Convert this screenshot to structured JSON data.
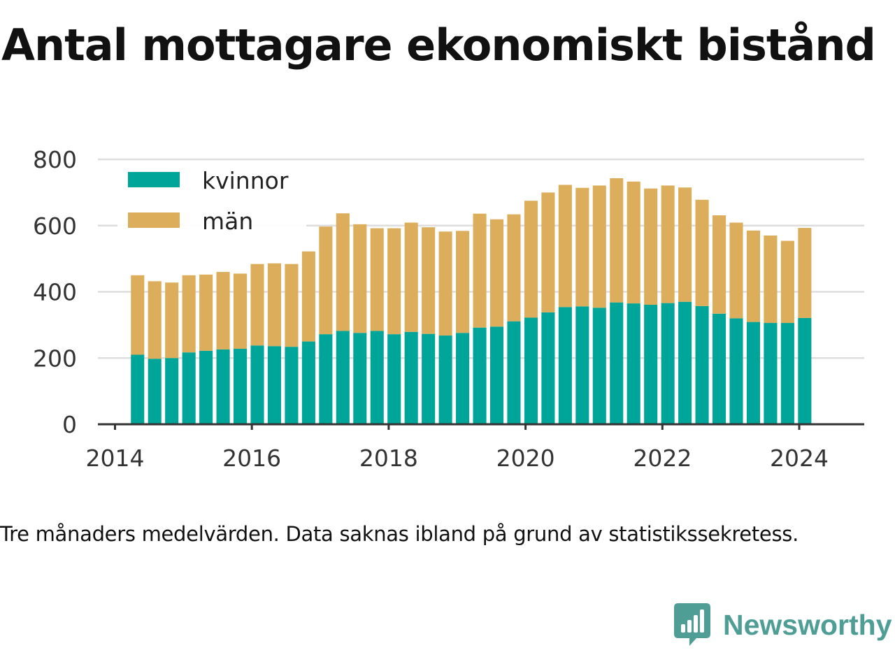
{
  "title": "Antal mottagare ekonomiskt bistånd",
  "note": "Tre månaders medelvärden. Data saknas ibland på grund av statistikssekretess.",
  "brand": {
    "name": "Newsworthy",
    "icon": "newsworthy-logo-icon",
    "color": "#4f9e95"
  },
  "chart_data": {
    "type": "bar",
    "stacked": true,
    "grid": true,
    "legend_position": "top-left",
    "xlabel": "",
    "ylabel": "",
    "ylim": [
      0,
      800
    ],
    "yticks": [
      0,
      200,
      400,
      600,
      800
    ],
    "xlim": [
      2013.75,
      2024.95
    ],
    "xticks": [
      2014,
      2016,
      2018,
      2020,
      2022,
      2024
    ],
    "x": [
      2014.33,
      2014.58,
      2014.83,
      2015.08,
      2015.33,
      2015.58,
      2015.83,
      2016.08,
      2016.33,
      2016.58,
      2016.83,
      2017.08,
      2017.33,
      2017.58,
      2017.83,
      2018.08,
      2018.33,
      2018.58,
      2018.83,
      2019.08,
      2019.33,
      2019.58,
      2019.83,
      2020.08,
      2020.33,
      2020.58,
      2020.83,
      2021.08,
      2021.33,
      2021.58,
      2021.83,
      2022.08,
      2022.33,
      2022.58,
      2022.83,
      2023.08,
      2023.33,
      2023.58,
      2023.83,
      2024.08
    ],
    "series": [
      {
        "name": "kvinnor",
        "color": "#00a59a",
        "values": [
          210,
          198,
          200,
          217,
          222,
          226,
          228,
          238,
          236,
          234,
          250,
          272,
          282,
          276,
          282,
          272,
          279,
          273,
          268,
          276,
          292,
          295,
          311,
          322,
          338,
          354,
          356,
          352,
          368,
          365,
          361,
          366,
          370,
          357,
          334,
          320,
          309,
          306,
          306,
          321
        ]
      },
      {
        "name": "män",
        "color": "#dcae5b",
        "values": [
          240,
          234,
          228,
          233,
          230,
          234,
          227,
          246,
          250,
          250,
          272,
          325,
          355,
          328,
          310,
          320,
          330,
          322,
          314,
          308,
          344,
          324,
          323,
          353,
          362,
          369,
          358,
          369,
          375,
          368,
          351,
          355,
          345,
          321,
          297,
          289,
          276,
          264,
          248,
          272
        ]
      }
    ]
  }
}
